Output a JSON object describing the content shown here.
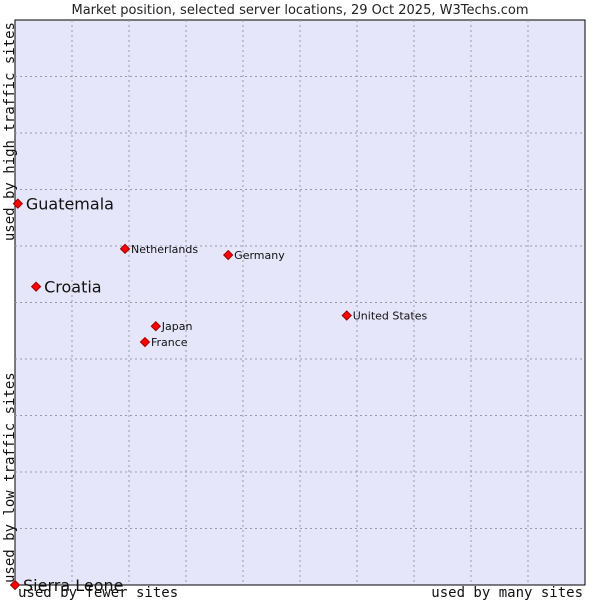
{
  "chart_data": {
    "type": "scatter",
    "title": "Market position, selected server locations, 29 Oct 2025, W3Techs.com",
    "xlabel_left": "used by fewer sites",
    "xlabel_right": "used by many sites",
    "ylabel_bottom": "used by low traffic sites",
    "ylabel_top": "used by high traffic sites",
    "xlim": [
      0,
      10
    ],
    "ylim": [
      0,
      10
    ],
    "grid": true,
    "plot_background": "#e6e6fa",
    "point_color": "#ff0000",
    "points": [
      {
        "name": "Guatemala",
        "x": 0.05,
        "y": 6.75,
        "highlight": true
      },
      {
        "name": "Croatia",
        "x": 0.37,
        "y": 5.28,
        "highlight": true
      },
      {
        "name": "Sierra Leone",
        "x": 0.0,
        "y": 0.0,
        "highlight": true
      },
      {
        "name": "Netherlands",
        "x": 1.93,
        "y": 5.95,
        "highlight": false
      },
      {
        "name": "Germany",
        "x": 3.74,
        "y": 5.84,
        "highlight": false
      },
      {
        "name": "United States",
        "x": 5.82,
        "y": 4.77,
        "highlight": false
      },
      {
        "name": "Japan",
        "x": 2.47,
        "y": 4.58,
        "highlight": false
      },
      {
        "name": "France",
        "x": 2.28,
        "y": 4.3,
        "highlight": false
      }
    ]
  }
}
